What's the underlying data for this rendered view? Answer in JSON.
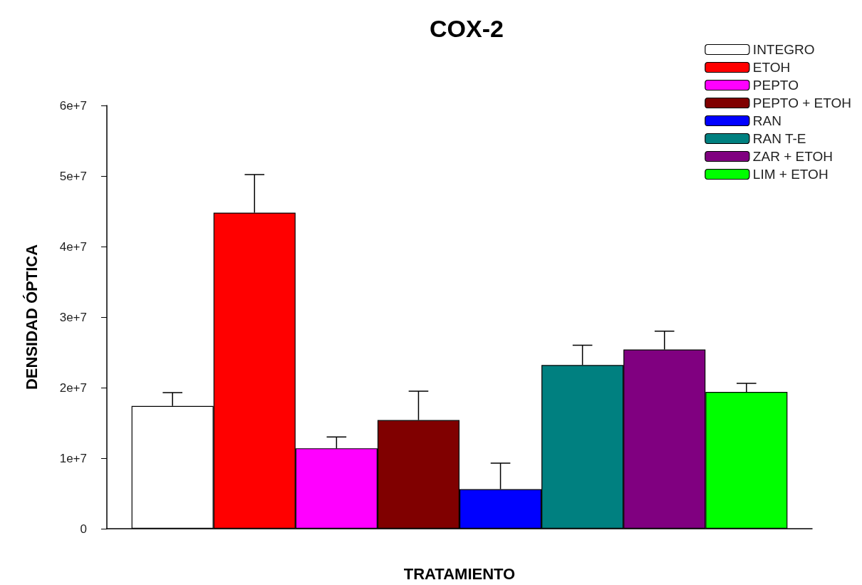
{
  "chart_data": {
    "type": "bar",
    "title": "COX-2",
    "xlabel": "TRATAMIENTO",
    "ylabel": "DENSIDAD ÓPTICA",
    "categories": [
      null
    ],
    "series": [
      {
        "name": "INTEGRO",
        "color": "#ffffff",
        "values": [
          17400000
        ],
        "errors": [
          [
            17400000,
            19300000
          ]
        ]
      },
      {
        "name": "ETOH",
        "color": "#ff0000",
        "values": [
          44800000
        ],
        "errors": [
          [
            44800000,
            50200000
          ]
        ]
      },
      {
        "name": "PEPTO",
        "color": "#ff00ff",
        "values": [
          11400000
        ],
        "errors": [
          [
            11400000,
            13000000
          ]
        ]
      },
      {
        "name": "PEPTO + ETOH",
        "color": "#800000",
        "values": [
          15400000
        ],
        "errors": [
          [
            15400000,
            19500000
          ]
        ]
      },
      {
        "name": "RAN",
        "color": "#0000ff",
        "values": [
          5600000
        ],
        "errors": [
          [
            5600000,
            9300000
          ]
        ]
      },
      {
        "name": "RAN T-E",
        "color": "#008080",
        "values": [
          23200000
        ],
        "errors": [
          [
            23200000,
            26000000
          ]
        ]
      },
      {
        "name": "ZAR + ETOH",
        "color": "#800080",
        "values": [
          25400000
        ],
        "errors": [
          [
            25400000,
            28000000
          ]
        ]
      },
      {
        "name": "LIM + ETOH",
        "color": "#00ff00",
        "values": [
          19400000
        ],
        "errors": [
          [
            19400000,
            20600000
          ]
        ]
      }
    ],
    "ylim": [
      0,
      60000000
    ],
    "yticks": [
      0,
      {
        "value": 10000000,
        "label": "1e+7"
      },
      {
        "value": 20000000,
        "label": "2e+7"
      },
      {
        "value": 30000000,
        "label": "3e+7"
      },
      {
        "value": 40000000,
        "label": "4e+7"
      },
      {
        "value": 50000000,
        "label": "5e+7"
      },
      {
        "value": 60000000,
        "label": "6e+7"
      }
    ],
    "grid": false,
    "legend": "top right"
  }
}
